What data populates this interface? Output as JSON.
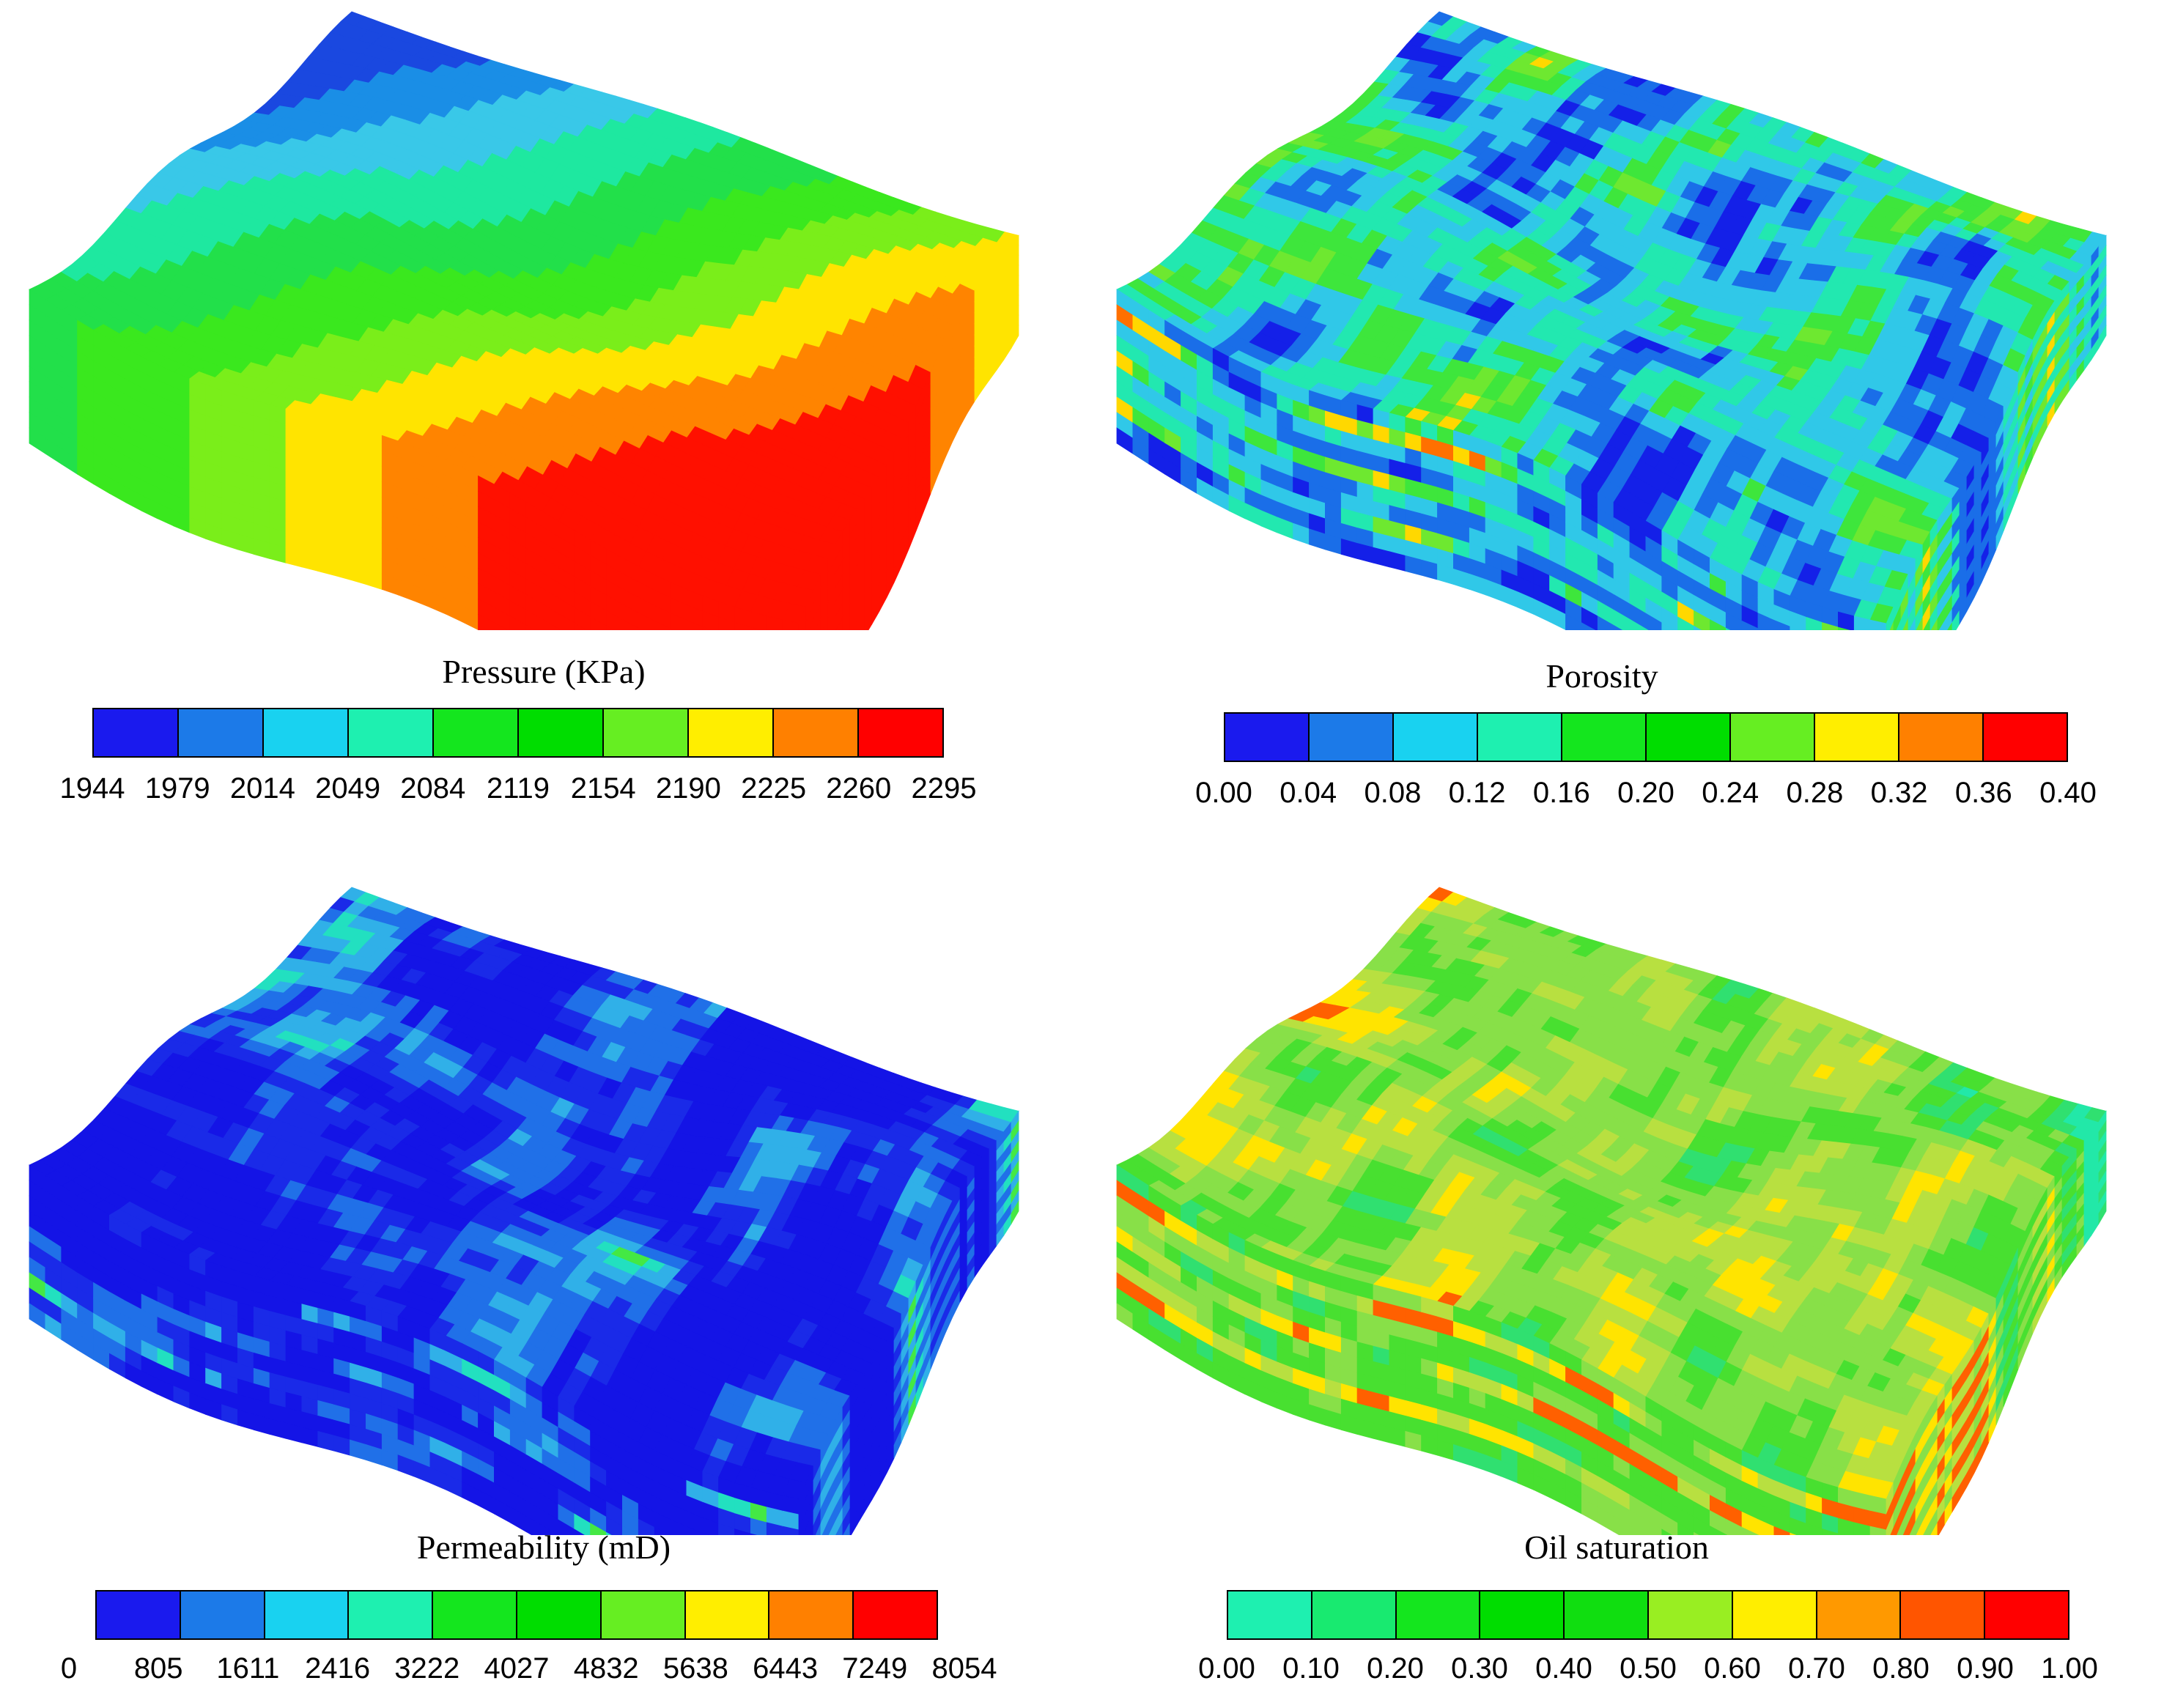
{
  "panels": [
    {
      "id": "pressure",
      "title": "Pressure (KPa)",
      "ticks": [
        "1944",
        "1979",
        "2014",
        "2049",
        "2084",
        "2119",
        "2154",
        "2190",
        "2225",
        "2260",
        "2295"
      ],
      "colors": [
        "#1a1aee",
        "#1c7ae8",
        "#19d2f0",
        "#1ef0b0",
        "#14e61e",
        "#00dd00",
        "#66ee22",
        "#ffee00",
        "#ff8000",
        "#ff0000"
      ],
      "model_palette": [
        "#1a48e0",
        "#1a8ee6",
        "#39c8e8",
        "#1ee8a0",
        "#22e04a",
        "#3ae81e",
        "#7aee1a",
        "#ffe400",
        "#ff8400",
        "#ff1000"
      ]
    },
    {
      "id": "porosity",
      "title": "Porosity",
      "ticks": [
        "0.00",
        "0.04",
        "0.08",
        "0.12",
        "0.16",
        "0.20",
        "0.24",
        "0.28",
        "0.32",
        "0.36",
        "0.40"
      ],
      "colors": [
        "#1a1aee",
        "#1c7ae8",
        "#19d2f0",
        "#1ef0b0",
        "#14e61e",
        "#00dd00",
        "#66ee22",
        "#ffee00",
        "#ff8000",
        "#ff0000"
      ],
      "model_palette": [
        "#1420e8",
        "#1a6ee8",
        "#30c8e8",
        "#22e8b0",
        "#3ee63c",
        "#6ee830",
        "#ffd800",
        "#ff7000"
      ]
    },
    {
      "id": "permeability",
      "title": "Permeability (mD)",
      "ticks": [
        "0",
        "805",
        "1611",
        "2416",
        "3222",
        "4027",
        "4832",
        "5638",
        "6443",
        "7249",
        "8054"
      ],
      "colors": [
        "#1a1aee",
        "#1c7ae8",
        "#19d2f0",
        "#1ef0b0",
        "#14e61e",
        "#00dd00",
        "#66ee22",
        "#ffee00",
        "#ff8000",
        "#ff0000"
      ],
      "model_palette": [
        "#1414e6",
        "#1a2ae8",
        "#2070e8",
        "#30b0e8",
        "#22e0c0",
        "#44e844"
      ]
    },
    {
      "id": "oil-saturation",
      "title": "Oil saturation",
      "ticks": [
        "0.00",
        "0.10",
        "0.20",
        "0.30",
        "0.40",
        "0.50",
        "0.60",
        "0.70",
        "0.80",
        "0.90",
        "1.00"
      ],
      "colors": [
        "#1ef0b0",
        "#18ea70",
        "#14e61e",
        "#00dd00",
        "#10de10",
        "#99ee22",
        "#ffee00",
        "#ff9900",
        "#ff5500",
        "#ff0000"
      ],
      "model_palette": [
        "#22e8a8",
        "#30e070",
        "#48e030",
        "#88e048",
        "#b8e040",
        "#ffe400",
        "#ff6000"
      ]
    }
  ]
}
